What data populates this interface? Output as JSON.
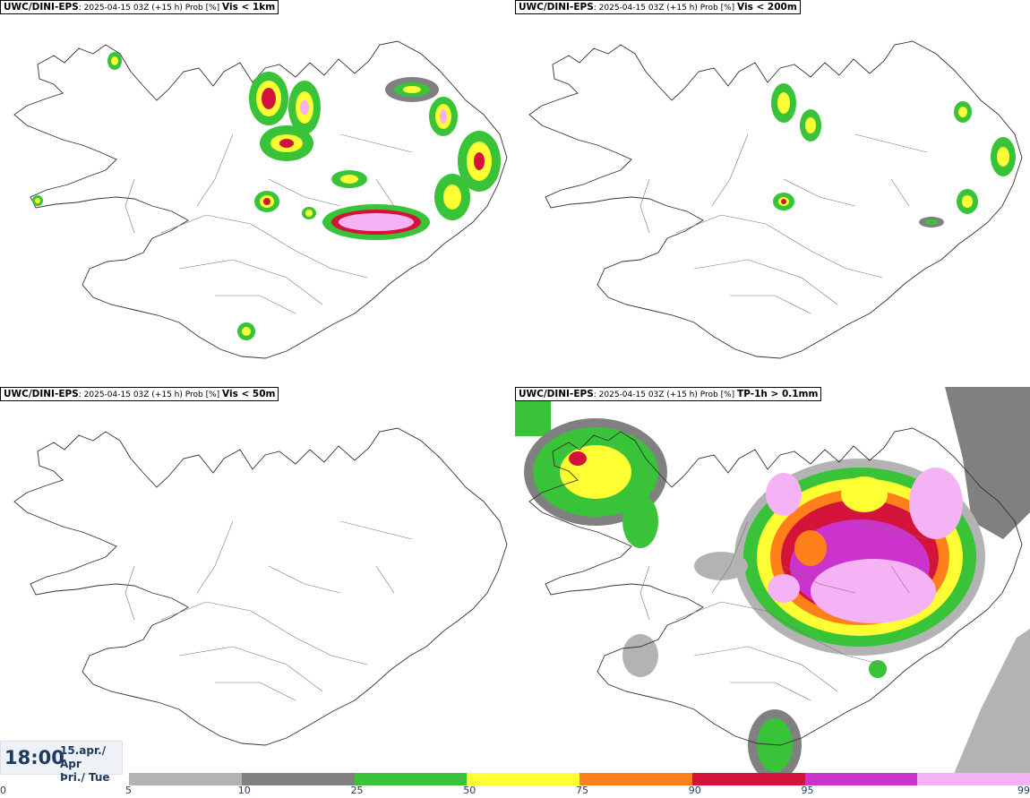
{
  "panels": [
    {
      "src": "UWC/DINI-EPS",
      "run": ": 2025-04-15 03Z (+15 h) Prob [%] ",
      "thr": "Vis < 1km"
    },
    {
      "src": "UWC/DINI-EPS",
      "run": ": 2025-04-15 03Z (+15 h) Prob [%] ",
      "thr": "Vis < 200m"
    },
    {
      "src": "UWC/DINI-EPS",
      "run": ": 2025-04-15 03Z (+15 h) Prob [%] ",
      "thr": "Vis < 50m"
    },
    {
      "src": "UWC/DINI-EPS",
      "run": ": 2025-04-15 03Z (+15 h) Prob [%] ",
      "thr": "TP-1h > 0.1mm"
    }
  ],
  "time": {
    "hhmm": "18:00",
    "date_line1": "15.apr./ Apr",
    "date_line2": "Þri./ Tue"
  },
  "colorbar": {
    "ticks": [
      "0",
      "5",
      "10",
      "25",
      "50",
      "75",
      "90",
      "95",
      "99"
    ],
    "colors": [
      "#b3b3b3",
      "#808080",
      "#39c339",
      "#ffff33",
      "#ff7f1a",
      "#d4133a",
      "#cc33cc",
      "#f5b3f5"
    ]
  }
}
